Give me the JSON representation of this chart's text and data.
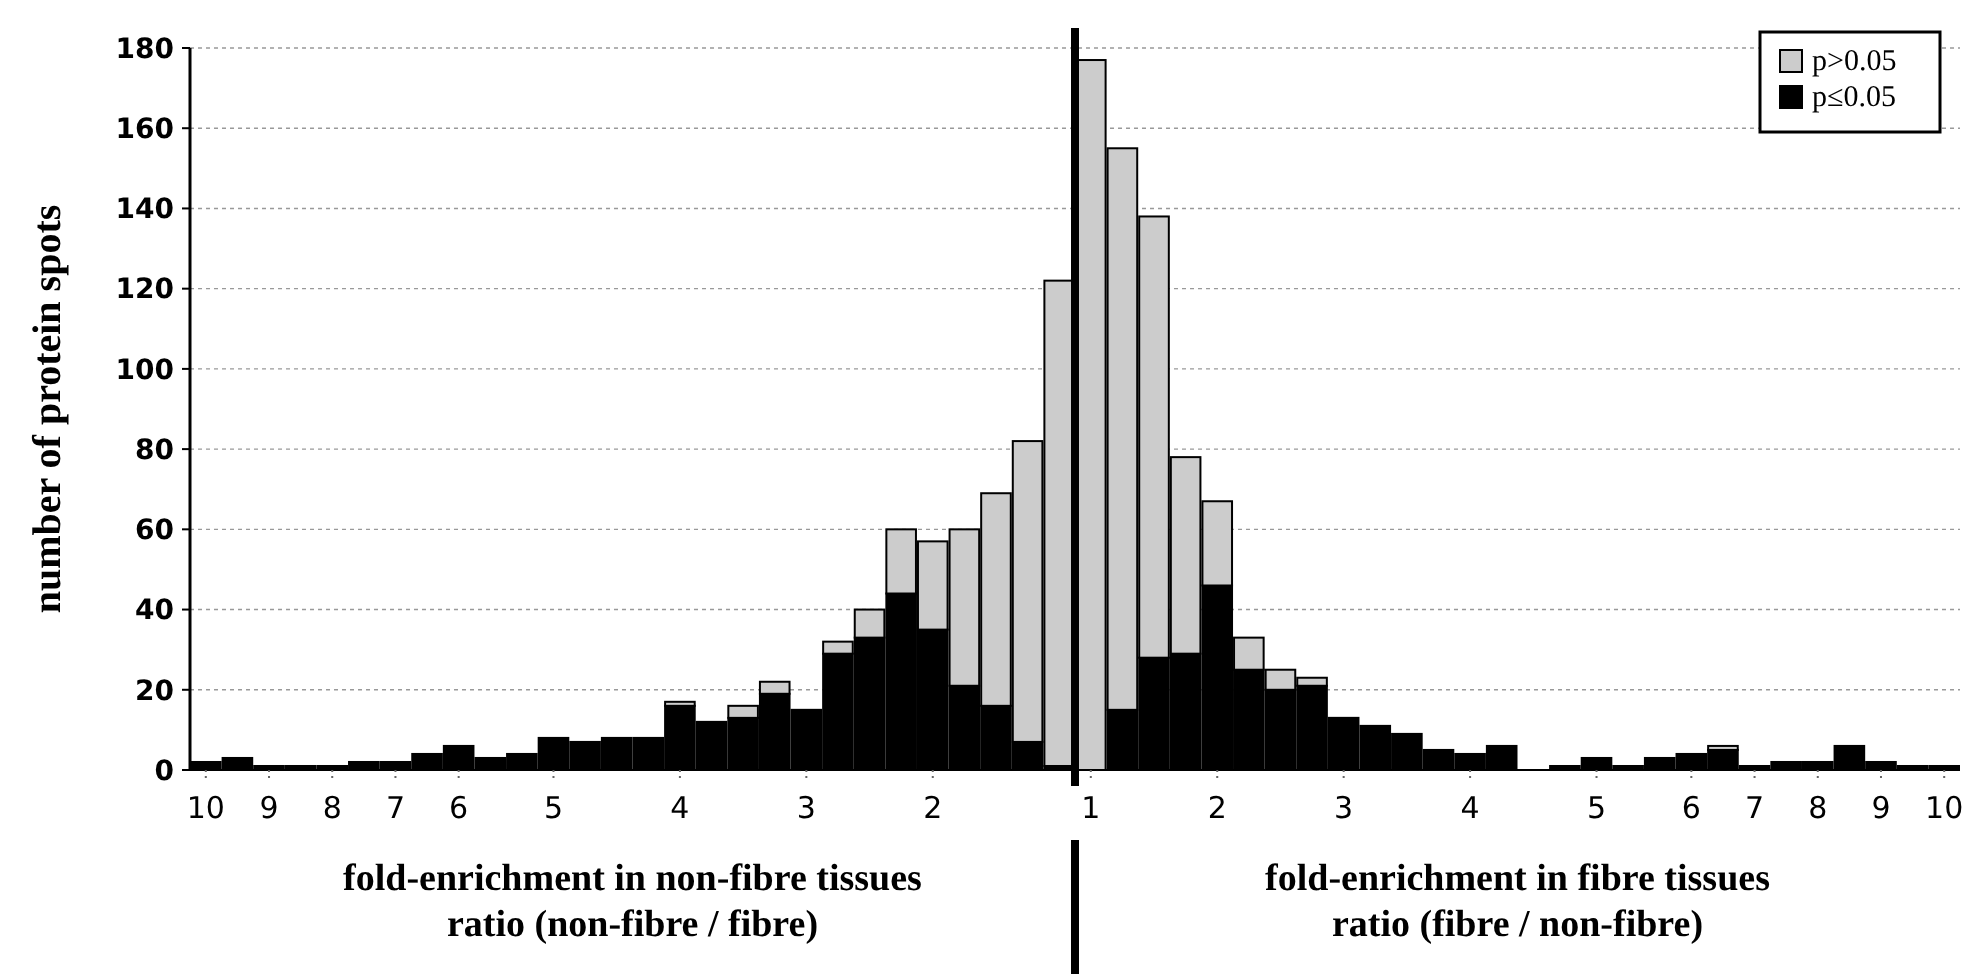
{
  "chart_data": {
    "type": "bar",
    "stacked": true,
    "ylabel": "number of protein spots",
    "categories": [
      "10",
      null,
      "9",
      null,
      "8",
      null,
      "7",
      null,
      "6",
      null,
      null,
      "5",
      null,
      null,
      null,
      "4",
      null,
      null,
      null,
      "3",
      null,
      null,
      null,
      "2",
      null,
      null,
      null,
      null,
      "1",
      null,
      null,
      null,
      "2",
      null,
      null,
      null,
      "3",
      null,
      null,
      null,
      "4",
      null,
      null,
      null,
      "5",
      null,
      null,
      "6",
      null,
      "7",
      null,
      "8",
      null,
      "9",
      null,
      "10"
    ],
    "series": [
      {
        "name": "p≤0.05",
        "color": "#000000",
        "values": [
          2,
          3,
          1,
          1,
          1,
          2,
          2,
          4,
          6,
          3,
          4,
          8,
          7,
          8,
          8,
          16,
          12,
          13,
          19,
          15,
          29,
          33,
          44,
          35,
          21,
          16,
          7,
          1,
          0,
          15,
          28,
          29,
          46,
          25,
          20,
          21,
          13,
          11,
          9,
          5,
          4,
          6,
          0,
          1,
          3,
          1,
          3,
          4,
          5,
          1,
          2,
          2,
          6,
          2,
          1,
          1
        ]
      },
      {
        "name": "p>0.05",
        "color": "#cccccc",
        "values": [
          0,
          0,
          0,
          0,
          0,
          0,
          0,
          0,
          0,
          0,
          0,
          0,
          0,
          0,
          0,
          1,
          0,
          3,
          3,
          0,
          3,
          7,
          16,
          22,
          39,
          53,
          75,
          121,
          177,
          140,
          110,
          49,
          21,
          8,
          5,
          2,
          0,
          0,
          0,
          0,
          0,
          0,
          0,
          0,
          0,
          0,
          0,
          0,
          1,
          0,
          0,
          0,
          0,
          0,
          0,
          0
        ]
      }
    ],
    "ylim": [
      0,
      180
    ],
    "yticks": [
      0,
      20,
      40,
      60,
      80,
      100,
      120,
      140,
      160,
      180
    ],
    "grid": "y",
    "legend": "top right",
    "ref_lines": [
      {
        "axis": "x",
        "value": "1",
        "color": "#000000"
      }
    ],
    "annotations": [
      "fold-enrichment in non-fibre tissues\nratio (non-fibre / fibre)",
      "fold-enrichment in fibre tissues\nratio (fibre / non-fibre)"
    ]
  }
}
